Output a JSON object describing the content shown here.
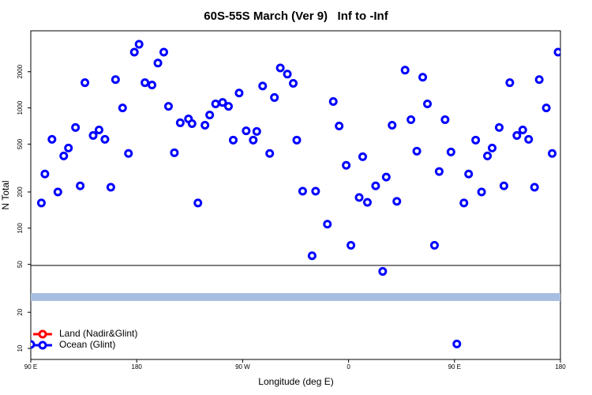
{
  "chart_data": {
    "type": "scatter",
    "title": "60S-55S March (Ver 9)   Inf to -Inf",
    "x_label": "Longitude (deg E)",
    "y_label": "N Total",
    "xlim": [
      90,
      540
    ],
    "ylim": [
      8.1,
      4375
    ],
    "log_y": true,
    "xticks": [
      {
        "value": 90,
        "label": "90 E"
      },
      180,
      {
        "value": 270,
        "label": "90 W"
      },
      {
        "value": 360,
        "label": "0"
      },
      {
        "value": 450,
        "label": "90 E"
      },
      {
        "value": 540,
        "label": "180"
      }
    ],
    "yticks": [
      10,
      20,
      50,
      100,
      200,
      500,
      1000,
      2000
    ],
    "legend": "bottom-left",
    "series": [
      {
        "name": "Land (Nadir&Glint)",
        "color": "#ff0000",
        "x": [],
        "values": []
      },
      {
        "name": "Ocean (Glint)",
        "color": "#0000ff",
        "x": [
          90,
          99,
          102,
          108,
          113,
          118,
          122,
          128,
          132,
          136,
          143,
          148,
          153,
          158,
          162,
          168,
          173,
          178,
          182,
          187,
          193,
          198,
          203,
          207,
          212,
          217,
          224,
          227,
          232,
          238,
          242,
          247,
          253,
          258,
          262,
          267,
          273,
          279,
          282,
          287,
          293,
          297,
          302,
          308,
          313,
          316,
          321,
          329,
          332,
          342,
          347,
          352,
          358,
          362,
          369,
          372,
          376,
          383,
          389,
          392,
          397,
          401,
          408,
          413,
          418,
          423,
          427,
          433,
          437,
          442,
          447,
          452,
          458,
          462,
          468,
          473,
          478,
          482,
          488,
          492,
          497,
          503,
          508,
          513,
          518,
          522,
          528,
          533,
          538
        ],
        "values": [
          10.8,
          162,
          282,
          548,
          200,
          399,
          464,
          687,
          225,
          1620,
          590,
          656,
          548,
          219,
          1720,
          1000,
          418,
          2910,
          3380,
          1620,
          1550,
          2360,
          2910,
          1030,
          424,
          752,
          810,
          740,
          162,
          718,
          873,
          1080,
          1110,
          1030,
          540,
          1330,
          645,
          540,
          637,
          1520,
          418,
          1220,
          2150,
          1910,
          1600,
          540,
          203,
          59,
          203,
          108,
          1130,
          707,
          333,
          72,
          180,
          393,
          164,
          225,
          43.7,
          266,
          718,
          167,
          2060,
          798,
          437,
          1800,
          1080,
          72,
          296,
          798,
          430,
          10.9,
          162,
          282,
          540,
          200,
          399,
          464,
          687,
          225,
          1620,
          590,
          656,
          548,
          219,
          1720,
          1000,
          418,
          2910
        ]
      }
    ]
  }
}
